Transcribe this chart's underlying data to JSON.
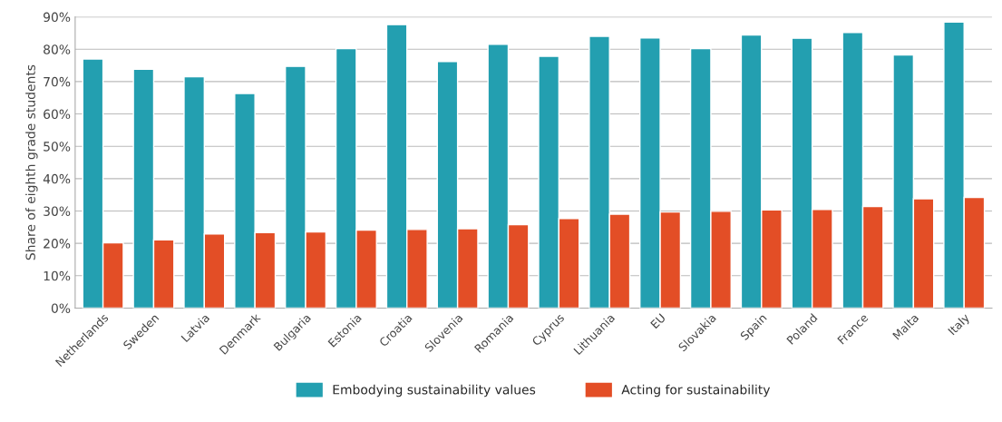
{
  "chart_data": {
    "type": "bar",
    "ylabel": "Share of eighth grade students",
    "categories": [
      "Netherlands",
      "Sweden",
      "Latvia",
      "Denmark",
      "Bulgaria",
      "Estonia",
      "Croatia",
      "Slovenia",
      "Romania",
      "Cyprus",
      "Lithuania",
      "EU",
      "Slovakia",
      "Spain",
      "Poland",
      "France",
      "Malta",
      "Italy"
    ],
    "series": [
      {
        "name": "Embodying sustainability values",
        "color": "#239fb0",
        "values": [
          77.0,
          73.8,
          71.5,
          66.3,
          74.7,
          80.2,
          87.6,
          76.2,
          81.5,
          77.8,
          84.0,
          83.5,
          80.2,
          84.4,
          83.4,
          85.2,
          78.2,
          88.4
        ]
      },
      {
        "name": "Acting for sustainability",
        "color": "#e34e26",
        "values": [
          20.2,
          21.1,
          22.9,
          23.3,
          23.5,
          24.1,
          24.3,
          24.5,
          25.8,
          27.7,
          29.0,
          29.7,
          29.9,
          30.3,
          30.5,
          31.4,
          33.8,
          34.2
        ]
      }
    ],
    "ylim": [
      0,
      90
    ],
    "yticks": [
      {
        "value": 0,
        "label": "0%"
      },
      {
        "value": 10,
        "label": "10%"
      },
      {
        "value": 20,
        "label": "20%"
      },
      {
        "value": 30,
        "label": "30%"
      },
      {
        "value": 40,
        "label": "40%"
      },
      {
        "value": 50,
        "label": "50%"
      },
      {
        "value": 60,
        "label": "60%"
      },
      {
        "value": 70,
        "label": "70%"
      },
      {
        "value": 80,
        "label": "80%"
      },
      {
        "value": 90,
        "label": "90%"
      }
    ],
    "grid": "y",
    "legend": "bottom"
  }
}
